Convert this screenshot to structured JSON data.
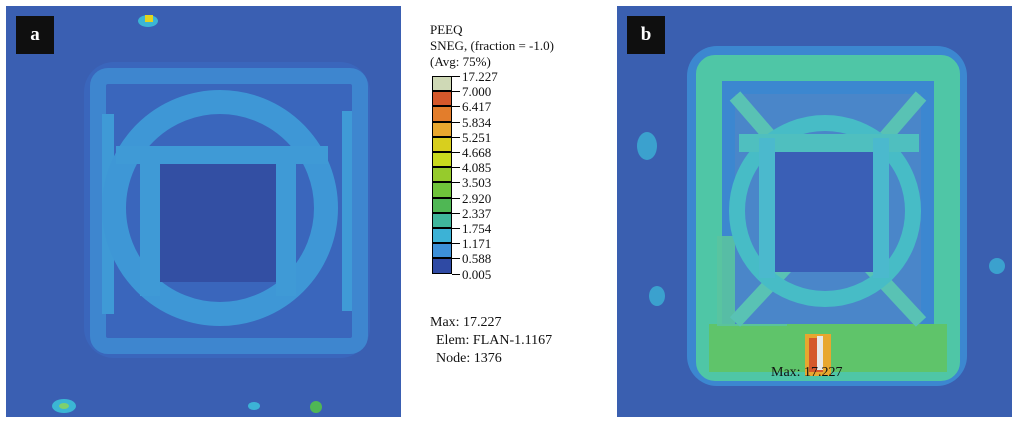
{
  "panels": [
    {
      "tag": "a"
    },
    {
      "tag": "b",
      "max_label": "Max: 17.227"
    }
  ],
  "legend": {
    "title_lines": [
      "PEEQ",
      "SNEG, (fraction = -1.0)",
      "(Avg: 75%)"
    ],
    "bands": [
      {
        "value": "17.227",
        "color": "#cfd9b6"
      },
      {
        "value": "7.000",
        "color": "#d5582b"
      },
      {
        "value": "6.417",
        "color": "#e37d2b"
      },
      {
        "value": "5.834",
        "color": "#e8a72f"
      },
      {
        "value": "5.251",
        "color": "#d8cf1e"
      },
      {
        "value": "4.668",
        "color": "#c9da1e"
      },
      {
        "value": "4.085",
        "color": "#96cb2c"
      },
      {
        "value": "3.503",
        "color": "#6fc33a"
      },
      {
        "value": "2.920",
        "color": "#4fb754"
      },
      {
        "value": "2.337",
        "color": "#3fb69c"
      },
      {
        "value": "1.754",
        "color": "#3cb2d6"
      },
      {
        "value": "1.171",
        "color": "#3d90d8"
      },
      {
        "value": "0.588",
        "color": "#3360b8"
      },
      {
        "value": "0.005",
        "color": ""
      }
    ],
    "bottom_color": "#2f4aa4",
    "max_line": "Max: 17.227",
    "elem_line": "Elem: FLAN-1.1167",
    "node_line": "Node: 1376"
  }
}
